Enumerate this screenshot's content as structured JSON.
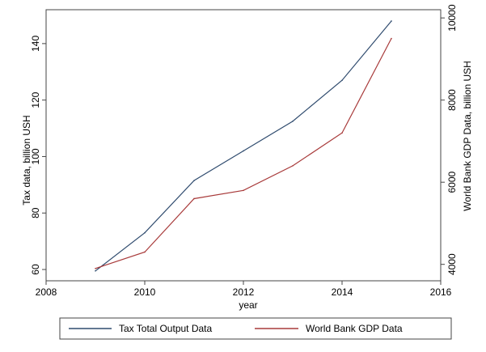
{
  "chart_data": {
    "type": "line",
    "xlabel": "year",
    "ylabel_left": "Tax data, billion USH",
    "ylabel_right": "World Bank GDP Data, billion USH",
    "xlim": [
      2008,
      2016
    ],
    "ylim_left": [
      56,
      152
    ],
    "ylim_right": [
      3600,
      10200
    ],
    "x_ticks": [
      2008,
      2010,
      2012,
      2014,
      2016
    ],
    "y_left_ticks": [
      60,
      80,
      100,
      120,
      140
    ],
    "y_right_ticks": [
      4000,
      6000,
      8000,
      10000
    ],
    "x": [
      2009,
      2010,
      2011,
      2012,
      2013,
      2014,
      2015
    ],
    "grid": false,
    "legend_position": "bottom",
    "series": [
      {
        "name": "Tax Total Output Data",
        "axis": "left",
        "color": "#2f4b6e",
        "values": [
          59.5,
          73.0,
          91.5,
          102.0,
          112.5,
          127.0,
          148.0
        ]
      },
      {
        "name": "World Bank GDP Data",
        "axis": "right",
        "color": "#a83a3a",
        "values": [
          3900,
          4300,
          5600,
          5800,
          6400,
          7200,
          9500
        ]
      }
    ]
  }
}
